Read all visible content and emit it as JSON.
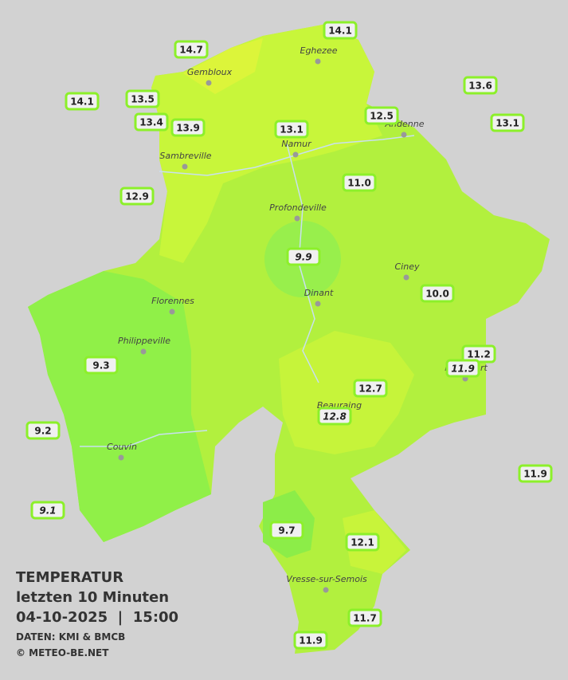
{
  "legend": {
    "title": "TEMPERATUR",
    "subtitle": "letzten 10 Minuten",
    "datetime": "04-10-2025  |  15:00",
    "source": "DATEN: KMI & BMCB",
    "copyright": "© METEO-BE.NET"
  },
  "places": [
    "Eghezee",
    "Gembloux",
    "Andenne",
    "Namur",
    "Sambreville",
    "Profondeville",
    "Ciney",
    "Dinant",
    "Florennes",
    "Philippeville",
    "Rochefort",
    "Beauraing",
    "Couvin",
    "Vresse-sur-Semois"
  ],
  "stations": [
    {
      "value": "14.1",
      "italic": false
    },
    {
      "value": "14.7",
      "italic": false
    },
    {
      "value": "14.1",
      "italic": false
    },
    {
      "value": "13.5",
      "italic": false
    },
    {
      "value": "13.6",
      "italic": false
    },
    {
      "value": "12.5",
      "italic": false
    },
    {
      "value": "13.4",
      "italic": false
    },
    {
      "value": "13.9",
      "italic": false
    },
    {
      "value": "13.1",
      "italic": false
    },
    {
      "value": "13.1",
      "italic": false
    },
    {
      "value": "12.9",
      "italic": false
    },
    {
      "value": "11.0",
      "italic": false
    },
    {
      "value": "9.9",
      "italic": true
    },
    {
      "value": "10.0",
      "italic": false
    },
    {
      "value": "11.2",
      "italic": false
    },
    {
      "value": "11.9",
      "italic": true
    },
    {
      "value": "9.3",
      "italic": false
    },
    {
      "value": "12.7",
      "italic": false
    },
    {
      "value": "12.8",
      "italic": true
    },
    {
      "value": "9.2",
      "italic": false
    },
    {
      "value": "11.9",
      "italic": false
    },
    {
      "value": "9.1",
      "italic": true
    },
    {
      "value": "9.7",
      "italic": false
    },
    {
      "value": "12.1",
      "italic": false
    },
    {
      "value": "11.7",
      "italic": false
    },
    {
      "value": "11.9",
      "italic": false
    }
  ]
}
